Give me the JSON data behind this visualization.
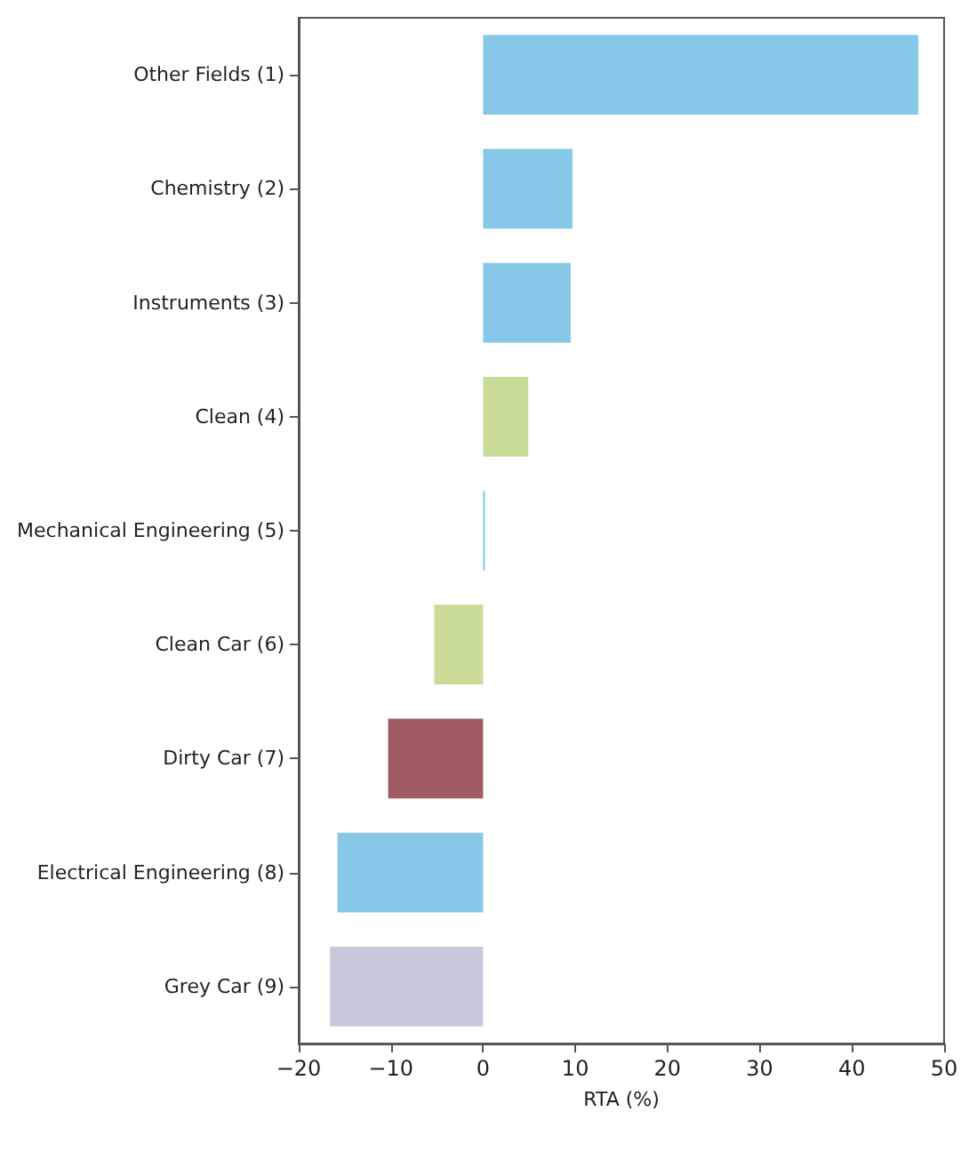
{
  "chart_data": {
    "type": "bar",
    "orientation": "horizontal",
    "xlabel": "RTA (%)",
    "categories": [
      "Other Fields (1)",
      "Chemistry (2)",
      "Instruments (3)",
      "Clean (4)",
      "Mechanical Engineering (5)",
      "Clean Car (6)",
      "Dirty Car (7)",
      "Electrical Engineering (8)",
      "Grey Car (9)"
    ],
    "values": [
      47.2,
      9.7,
      9.5,
      4.9,
      0.2,
      -5.3,
      -10.3,
      -15.8,
      -16.6
    ],
    "colors": [
      "#87c8e8",
      "#87c8e8",
      "#87c8e8",
      "#c8dc98",
      "#87c8e8",
      "#c8dc98",
      "#a05a64",
      "#87c8e8",
      "#c8c8dc"
    ],
    "xlim": [
      -20,
      50
    ],
    "xticks": [
      -20,
      -10,
      0,
      10,
      20,
      30,
      40,
      50
    ],
    "grid": false
  }
}
